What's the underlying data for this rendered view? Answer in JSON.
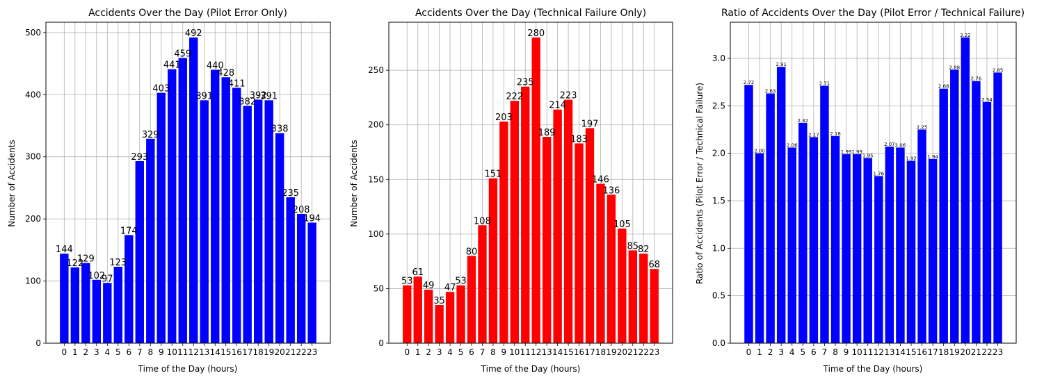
{
  "chart_data": [
    {
      "type": "bar",
      "title": "Accidents Over the Day (Pilot Error Only)",
      "xlabel": "Time of the Day (hours)",
      "ylabel": "Number of Accidents",
      "color": "#0000ff",
      "categories": [
        "0",
        "1",
        "2",
        "3",
        "4",
        "5",
        "6",
        "7",
        "8",
        "9",
        "10",
        "11",
        "12",
        "13",
        "14",
        "15",
        "16",
        "17",
        "18",
        "19",
        "20",
        "21",
        "22",
        "23"
      ],
      "values": [
        144,
        122,
        129,
        102,
        97,
        123,
        174,
        293,
        329,
        403,
        441,
        459,
        492,
        391,
        440,
        428,
        411,
        382,
        392,
        391,
        338,
        235,
        208,
        194
      ],
      "value_labels": [
        "144",
        "122",
        "129",
        "102",
        "97",
        "123",
        "174",
        "293",
        "329",
        "403",
        "441",
        "459",
        "492",
        "391",
        "440",
        "428",
        "411",
        "382",
        "392",
        "391",
        "338",
        "235",
        "208",
        "194"
      ],
      "ylim": [
        0,
        516.6
      ],
      "yticks": [
        0,
        100,
        200,
        300,
        400,
        500
      ],
      "ytick_labels": [
        "0",
        "100",
        "200",
        "300",
        "400",
        "500"
      ],
      "grid": true
    },
    {
      "type": "bar",
      "title": "Accidents Over the Day (Technical Failure Only)",
      "xlabel": "Time of the Day (hours)",
      "ylabel": "Number of Accidents",
      "color": "#ff0000",
      "categories": [
        "0",
        "1",
        "2",
        "3",
        "4",
        "5",
        "6",
        "7",
        "8",
        "9",
        "10",
        "11",
        "12",
        "13",
        "14",
        "15",
        "16",
        "17",
        "18",
        "19",
        "20",
        "21",
        "22",
        "23"
      ],
      "values": [
        53,
        61,
        49,
        35,
        47,
        53,
        80,
        108,
        151,
        203,
        222,
        235,
        280,
        189,
        214,
        223,
        183,
        197,
        146,
        136,
        105,
        85,
        82,
        68
      ],
      "value_labels": [
        "53",
        "61",
        "49",
        "35",
        "47",
        "53",
        "80",
        "108",
        "151",
        "203",
        "222",
        "235",
        "280",
        "189",
        "214",
        "223",
        "183",
        "197",
        "146",
        "136",
        "105",
        "85",
        "82",
        "68"
      ],
      "ylim": [
        0,
        294
      ],
      "yticks": [
        0,
        50,
        100,
        150,
        200,
        250
      ],
      "ytick_labels": [
        "0",
        "50",
        "100",
        "150",
        "200",
        "250"
      ],
      "grid": true
    },
    {
      "type": "bar",
      "title": "Ratio of Accidents Over the Day (Pilot Error / Technical Failure)",
      "xlabel": "Time of the Day (hours)",
      "ylabel": "Ratio of Accidents (Pilot Error / Technical Failure)",
      "color": "#0000ff",
      "categories": [
        "0",
        "1",
        "2",
        "3",
        "4",
        "5",
        "6",
        "7",
        "8",
        "9",
        "10",
        "11",
        "12",
        "13",
        "14",
        "15",
        "16",
        "17",
        "18",
        "19",
        "20",
        "21",
        "22",
        "23"
      ],
      "values": [
        2.72,
        2.0,
        2.63,
        2.91,
        2.06,
        2.32,
        2.17,
        2.71,
        2.18,
        1.99,
        1.99,
        1.95,
        1.76,
        2.07,
        2.06,
        1.92,
        2.25,
        1.94,
        2.68,
        2.88,
        3.22,
        2.76,
        2.54,
        2.85
      ],
      "value_labels": [
        "2.72",
        "2.00",
        "2.63",
        "2.91",
        "2.06",
        "2.32",
        "2.17",
        "2.71",
        "2.18",
        "1.99",
        "1.99",
        "1.95",
        "1.76",
        "2.07",
        "2.06",
        "1.92",
        "2.25",
        "1.94",
        "2.68",
        "2.88",
        "3.22",
        "2.76",
        "2.54",
        "2.85"
      ],
      "ylim": [
        0,
        3.38
      ],
      "yticks": [
        0,
        0.5,
        1.0,
        1.5,
        2.0,
        2.5,
        3.0
      ],
      "ytick_labels": [
        "0.0",
        "0.5",
        "1.0",
        "1.5",
        "2.0",
        "2.5",
        "3.0"
      ],
      "grid": true
    }
  ]
}
